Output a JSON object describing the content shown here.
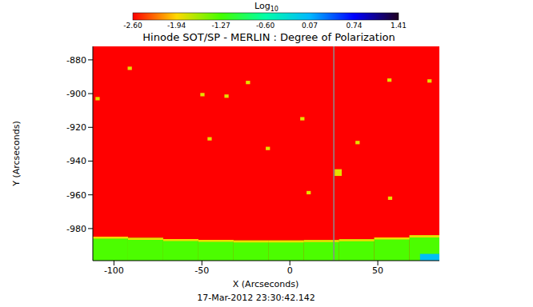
{
  "chart_data": {
    "type": "heatmap",
    "title": "Hinode SOT/SP - MERLIN : Degree of Polarization",
    "x_label": "X (Arcseconds)",
    "y_label": "Y (Arcseconds)",
    "annotation": "17-Mar-2012 23:30:42.142",
    "xlim": [
      -112,
      85
    ],
    "xticks": [
      -100,
      -50,
      0,
      50
    ],
    "ylim": [
      -999,
      -872
    ],
    "yticks": [
      -980,
      -960,
      -940,
      -920,
      -900,
      -880
    ],
    "vertical_line_x": 25,
    "colorbar": {
      "label": "Log",
      "label_subscript": "10",
      "range": [
        -2.6,
        1.41
      ],
      "ticks": [
        {
          "value": -2.6,
          "label": "-2.60"
        },
        -1.94,
        -1.27,
        {
          "value": -0.6,
          "label": "-0.60"
        },
        0.07,
        0.74,
        1.41
      ]
    },
    "cells": [
      {
        "x": [
          -112,
          85
        ],
        "y": [
          -999,
          -872
        ],
        "value": -2.6
      },
      {
        "x": [
          -112,
          -92
        ],
        "y": [
          -999,
          -984.8
        ],
        "value": -1.3
      },
      {
        "x": [
          -92,
          -72
        ],
        "y": [
          -999,
          -985.5
        ],
        "value": -1.3
      },
      {
        "x": [
          -72,
          -52
        ],
        "y": [
          -999,
          -986.2
        ],
        "value": -1.3
      },
      {
        "x": [
          -52,
          -32
        ],
        "y": [
          -999,
          -986.7
        ],
        "value": -1.3
      },
      {
        "x": [
          -32,
          -12
        ],
        "y": [
          -999,
          -987
        ],
        "value": -1.3
      },
      {
        "x": [
          -12,
          8
        ],
        "y": [
          -999,
          -987
        ],
        "value": -1.3
      },
      {
        "x": [
          8,
          28
        ],
        "y": [
          -999,
          -986.8
        ],
        "value": -1.3
      },
      {
        "x": [
          28,
          48
        ],
        "y": [
          -999,
          -986.3
        ],
        "value": -1.3
      },
      {
        "x": [
          48,
          68
        ],
        "y": [
          -999,
          -985.3
        ],
        "value": -1.3
      },
      {
        "x": [
          68,
          85
        ],
        "y": [
          -999,
          -984
        ],
        "value": -1.3
      },
      {
        "x": [
          -112,
          -92
        ],
        "y": [
          -986,
          -984.8
        ],
        "value": -1.9
      },
      {
        "x": [
          -92,
          -72
        ],
        "y": [
          -986.7,
          -985.5
        ],
        "value": -1.9
      },
      {
        "x": [
          -72,
          -52
        ],
        "y": [
          -987.4,
          -986.2
        ],
        "value": -1.9
      },
      {
        "x": [
          -52,
          -32
        ],
        "y": [
          -987.9,
          -986.7
        ],
        "value": -1.9
      },
      {
        "x": [
          -32,
          -12
        ],
        "y": [
          -988.2,
          -987
        ],
        "value": -1.9
      },
      {
        "x": [
          -12,
          8
        ],
        "y": [
          -988.2,
          -987
        ],
        "value": -1.9
      },
      {
        "x": [
          8,
          28
        ],
        "y": [
          -988,
          -986.8
        ],
        "value": -1.9
      },
      {
        "x": [
          28,
          48
        ],
        "y": [
          -987.5,
          -986.3
        ],
        "value": -1.9
      },
      {
        "x": [
          48,
          68
        ],
        "y": [
          -986.5,
          -985.3
        ],
        "value": -1.9
      },
      {
        "x": [
          68,
          85
        ],
        "y": [
          -985.2,
          -984
        ],
        "value": -1.9
      },
      {
        "x": [
          74,
          85
        ],
        "y": [
          -999,
          -995
        ],
        "value": 0.0
      },
      {
        "x": [
          -50.9,
          -48.5
        ],
        "y": [
          -901.6,
          -899.6
        ],
        "value": -1.85
      },
      {
        "x": [
          -37.2,
          -34.8
        ],
        "y": [
          -902.5,
          -900.5
        ],
        "value": -1.85
      },
      {
        "x": [
          -25,
          -22.6
        ],
        "y": [
          -894.4,
          -892.4
        ],
        "value": -1.85
      },
      {
        "x": [
          -46.8,
          -44.4
        ],
        "y": [
          -927.8,
          -925.8
        ],
        "value": -1.85
      },
      {
        "x": [
          5.9,
          8.3
        ],
        "y": [
          -915.9,
          -913.9
        ],
        "value": -1.85
      },
      {
        "x": [
          25.5,
          29.5
        ],
        "y": [
          -948.8,
          -944.8
        ],
        "value": -1.85
      },
      {
        "x": [
          9.5,
          11.9
        ],
        "y": [
          -959.7,
          -957.7
        ],
        "value": -1.85
      },
      {
        "x": [
          -110.5,
          -108.1
        ],
        "y": [
          -904,
          -902
        ],
        "value": -1.85
      },
      {
        "x": [
          78.2,
          80.6
        ],
        "y": [
          -893.5,
          -891.5
        ],
        "value": -1.85
      },
      {
        "x": [
          55.4,
          57.8
        ],
        "y": [
          -893,
          -891
        ],
        "value": -1.85
      },
      {
        "x": [
          55.8,
          58.2
        ],
        "y": [
          -963,
          -961
        ],
        "value": -1.85
      },
      {
        "x": [
          37.3,
          39.7
        ],
        "y": [
          -930,
          -928
        ],
        "value": -1.85
      },
      {
        "x": [
          -13.7,
          -11.3
        ],
        "y": [
          -933.5,
          -931.5
        ],
        "value": -1.85
      },
      {
        "x": [
          -92.2,
          -89.8
        ],
        "y": [
          -886,
          -884
        ],
        "value": -1.85
      }
    ]
  }
}
